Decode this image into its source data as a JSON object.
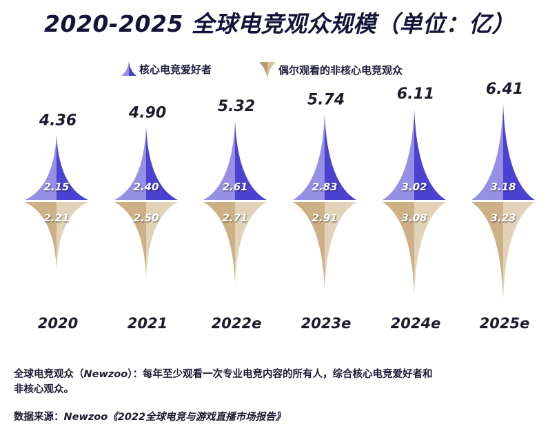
{
  "title": "2020-2025 全球电竞观众规模（单位：亿）",
  "legend": {
    "core": {
      "label": "核心电竞爱好者",
      "icon": "up-spike-icon"
    },
    "casual": {
      "label": "偶尔观看的非核心电竞观众",
      "icon": "down-spike-icon"
    }
  },
  "colors": {
    "core_light": "#9590e3",
    "core_dark": "#4b42d2",
    "casual_dark": "#cdb086",
    "casual_light": "#e2d3b8",
    "text_dark": "#1c1b2e",
    "title": "#14133a"
  },
  "chart_data": {
    "type": "bar",
    "title": "2020-2025 全球电竞观众规模（单位：亿）",
    "xlabel": "",
    "ylabel": "",
    "unit": "亿",
    "categories": [
      "2020",
      "2021",
      "2022e",
      "2023e",
      "2024e",
      "2025e"
    ],
    "totals": [
      4.36,
      4.9,
      5.32,
      5.74,
      6.11,
      6.41
    ],
    "series": [
      {
        "name": "核心电竞爱好者",
        "direction": "up",
        "values": [
          2.15,
          2.4,
          2.61,
          2.83,
          3.02,
          3.18
        ]
      },
      {
        "name": "偶尔观看的非核心电竞观众",
        "direction": "down",
        "values": [
          2.21,
          2.5,
          2.71,
          2.91,
          3.08,
          3.23
        ]
      }
    ],
    "value_labels": {
      "totals": [
        "4.36",
        "4.90",
        "5.32",
        "5.74",
        "6.11",
        "6.41"
      ],
      "core": [
        "2.15",
        "2.40",
        "2.61",
        "2.83",
        "3.02",
        "3.18"
      ],
      "casual": [
        "2.21",
        "2.50",
        "2.71",
        "2.91",
        "3.08",
        "3.23"
      ]
    },
    "legend_position": "top-center",
    "grid": false
  },
  "notes": {
    "definition_prefix": "全球电竞观众（",
    "definition_source": "Newzoo",
    "definition_suffix": "）：每年至少观看一次专业电竞内容的所有人，综合核心电竞爱好者和",
    "definition_line2": "非核心观众。",
    "source_prefix": "数据来源：",
    "source_text": "Newzoo《2022全球电竞与游戏直播市场报告》"
  }
}
